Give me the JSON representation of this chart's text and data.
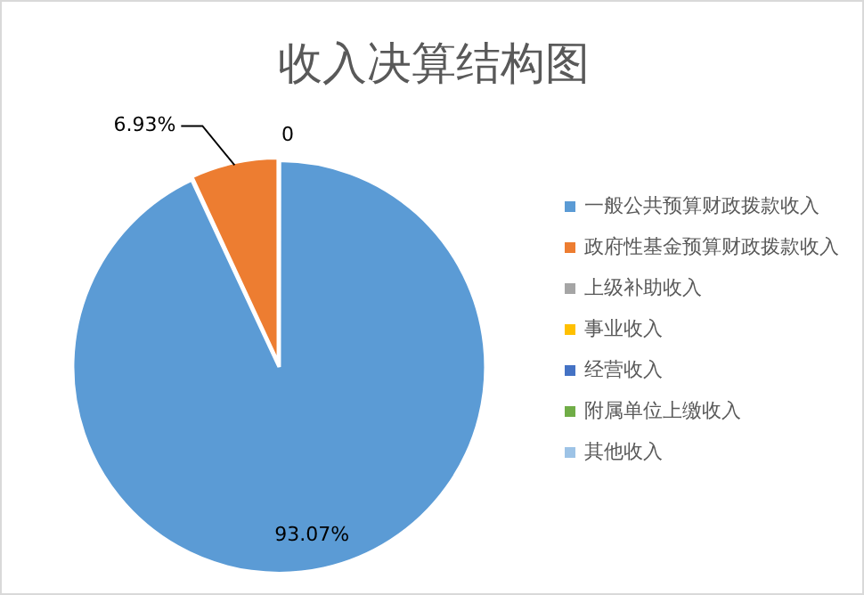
{
  "chart_data": {
    "type": "pie",
    "title": "收入决算结构图",
    "categories": [
      "一般公共预算财政拨款收入",
      "政府性基金预算财政拨款收入",
      "上级补助收入",
      "事业收入",
      "经营收入",
      "附属单位上缴收入",
      "其他收入"
    ],
    "values": [
      93.07,
      6.93,
      0,
      0,
      0,
      0,
      0
    ],
    "colors": [
      "#5b9bd5",
      "#ed7d31",
      "#a5a5a5",
      "#ffc000",
      "#4472c4",
      "#70ad47",
      "#9dc3e6"
    ],
    "value_labels": [
      "93.07%",
      "6.93%",
      "0",
      null,
      null,
      null,
      null
    ],
    "legend": "right"
  }
}
